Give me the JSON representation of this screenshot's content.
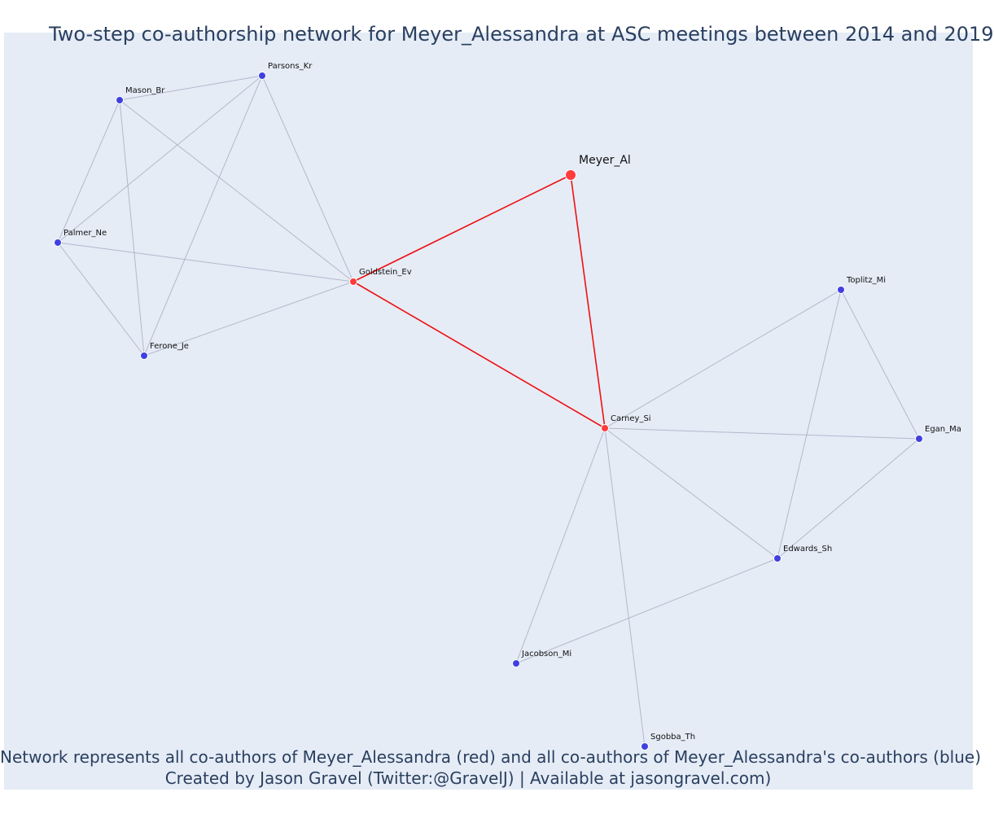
{
  "title": "Two-step co-authorship network for Meyer_Alessandra at ASC meetings between 2014 and 2019",
  "caption_line1": "Network represents all co-authors of Meyer_Alessandra (red) and all co-authors of Meyer_Alessandra's co-authors (blue)",
  "caption_line2": "Created by Jason Gravel (Twitter:@GravelJ) | Available at jasongravel.com)",
  "colors": {
    "background": "#e5ecf6",
    "text": "#2a3f5f",
    "first_degree": "#ff3b3b",
    "second_degree": "#4040e0",
    "red_edge": "#ee1111",
    "gray_edge": "#b4b8cc"
  },
  "nodes": [
    {
      "id": "Meyer_Al",
      "label": "Meyer_Al",
      "group": "ego"
    },
    {
      "id": "Goldstein_Ev",
      "label": "Goldstein_Ev",
      "group": "coauthor"
    },
    {
      "id": "Carney_Si",
      "label": "Carney_Si",
      "group": "coauthor"
    },
    {
      "id": "Parsons_Kr",
      "label": "Parsons_Kr",
      "group": "second"
    },
    {
      "id": "Mason_Br",
      "label": "Mason_Br",
      "group": "second"
    },
    {
      "id": "Palmer_Ne",
      "label": "Palmer_Ne",
      "group": "second"
    },
    {
      "id": "Ferone_Je",
      "label": "Ferone_Je",
      "group": "second"
    },
    {
      "id": "Toplitz_Mi",
      "label": "Toplitz_Mi",
      "group": "second"
    },
    {
      "id": "Egan_Ma",
      "label": "Egan_Ma",
      "group": "second"
    },
    {
      "id": "Edwards_Sh",
      "label": "Edwards_Sh",
      "group": "second"
    },
    {
      "id": "Jacobson_Mi",
      "label": "Jacobson_Mi",
      "group": "second"
    },
    {
      "id": "Sgobba_Th",
      "label": "Sgobba_Th",
      "group": "second"
    }
  ],
  "edges": [
    {
      "source": "Meyer_Al",
      "target": "Goldstein_Ev",
      "type": "ego"
    },
    {
      "source": "Meyer_Al",
      "target": "Carney_Si",
      "type": "ego"
    },
    {
      "source": "Goldstein_Ev",
      "target": "Carney_Si",
      "type": "ego"
    },
    {
      "source": "Parsons_Kr",
      "target": "Mason_Br",
      "type": "other"
    },
    {
      "source": "Parsons_Kr",
      "target": "Palmer_Ne",
      "type": "other"
    },
    {
      "source": "Parsons_Kr",
      "target": "Ferone_Je",
      "type": "other"
    },
    {
      "source": "Parsons_Kr",
      "target": "Goldstein_Ev",
      "type": "other"
    },
    {
      "source": "Mason_Br",
      "target": "Palmer_Ne",
      "type": "other"
    },
    {
      "source": "Mason_Br",
      "target": "Ferone_Je",
      "type": "other"
    },
    {
      "source": "Mason_Br",
      "target": "Goldstein_Ev",
      "type": "other"
    },
    {
      "source": "Palmer_Ne",
      "target": "Ferone_Je",
      "type": "other"
    },
    {
      "source": "Palmer_Ne",
      "target": "Goldstein_Ev",
      "type": "other"
    },
    {
      "source": "Ferone_Je",
      "target": "Goldstein_Ev",
      "type": "other"
    },
    {
      "source": "Carney_Si",
      "target": "Toplitz_Mi",
      "type": "other"
    },
    {
      "source": "Carney_Si",
      "target": "Egan_Ma",
      "type": "other"
    },
    {
      "source": "Carney_Si",
      "target": "Edwards_Sh",
      "type": "other"
    },
    {
      "source": "Carney_Si",
      "target": "Jacobson_Mi",
      "type": "other"
    },
    {
      "source": "Carney_Si",
      "target": "Sgobba_Th",
      "type": "other"
    },
    {
      "source": "Toplitz_Mi",
      "target": "Egan_Ma",
      "type": "other"
    },
    {
      "source": "Toplitz_Mi",
      "target": "Edwards_Sh",
      "type": "other"
    },
    {
      "source": "Egan_Ma",
      "target": "Edwards_Sh",
      "type": "other"
    },
    {
      "source": "Edwards_Sh",
      "target": "Jacobson_Mi",
      "type": "other"
    }
  ]
}
